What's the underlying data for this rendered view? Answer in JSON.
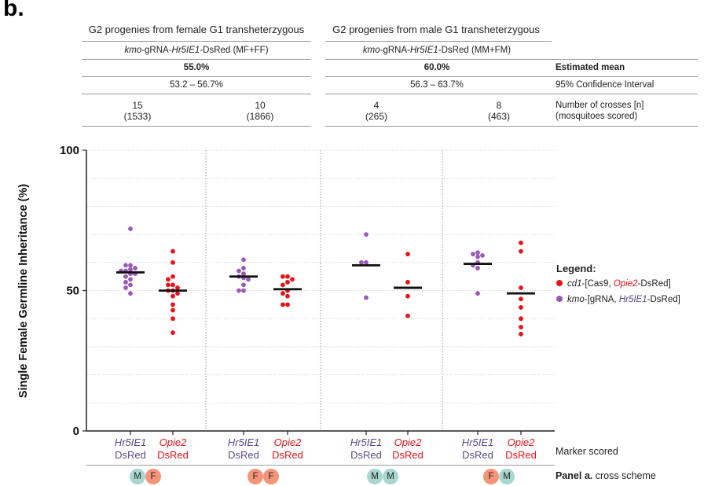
{
  "panel_letter": "b.",
  "header": {
    "group_female": "G2 progenies from female G1 transheterzygous",
    "group_male": "G2 progenies from male G1 transheterzygous",
    "line_female_pre": "kmo",
    "line_female_mid": "-gRNA-",
    "line_female_gene": "Hr5IE1",
    "line_female_post": "-DsRed (MF+FF)",
    "line_male_pre": "kmo",
    "line_male_mid": "-gRNA-",
    "line_male_gene": "Hr5IE1",
    "line_male_post": "-DsRed (MM+FM)",
    "mean_female": "55.0%",
    "mean_male": "60.0%",
    "ci_female": "53.2 – 56.7%",
    "ci_male": "56.3 – 63.7%",
    "right_labels": {
      "mean": "Estimated mean",
      "ci": "95% Confidence Interval",
      "n_line1": "Number of crosses [n]",
      "n_line2": "(mosquitoes scored)"
    },
    "counts": [
      {
        "n": "15",
        "scored": "(1533)"
      },
      {
        "n": "10",
        "scored": "(1866)"
      },
      {
        "n": "4",
        "scored": "(265)"
      },
      {
        "n": "8",
        "scored": "(463)"
      }
    ]
  },
  "legend": {
    "title": "Legend:",
    "items": [
      {
        "prefix": "cd1",
        "mid": "-[Cas9, ",
        "gene": "Opie2",
        "suffix": "-DsRed]",
        "color": "#e8121a"
      },
      {
        "prefix": "kmo",
        "mid": "-[gRNA, ",
        "gene": "Hr5IE1",
        "suffix": "-DsRed]",
        "color": "#9b59b6"
      }
    ]
  },
  "bottom": {
    "marker_scored": "Marker scored",
    "panel_ref_bold": "Panel a.",
    "panel_ref_rest": " cross scheme",
    "groups": [
      {
        "circles": [
          "M",
          "F"
        ]
      },
      {
        "circles": [
          "F",
          "F"
        ]
      },
      {
        "circles": [
          "M",
          "M"
        ]
      },
      {
        "circles": [
          "F",
          "M"
        ]
      }
    ],
    "circle_colors": {
      "M": "#a7d7cf",
      "F": "#f4957a"
    }
  },
  "chart_data": {
    "type": "scatter",
    "ylabel": "Single Female Germline Inheritance (%)",
    "ylim": [
      0,
      100
    ],
    "yticks": [
      "0",
      "50",
      "100"
    ],
    "grid": "horizontal dotted",
    "colors": {
      "Hr5IE1": "#9b59b6",
      "Opie2": "#e8121a"
    },
    "categories": [
      {
        "line1": "Hr5IE1",
        "line2": "DsRed",
        "marker": "Hr5IE1",
        "group": 0,
        "mean": 56.5,
        "values": [
          72,
          59,
          59,
          58,
          57.5,
          57,
          57,
          56,
          56,
          55,
          54,
          53,
          52,
          51,
          49
        ]
      },
      {
        "line1": "Opie2",
        "line2": "DsRed",
        "marker": "Opie2",
        "group": 0,
        "mean": 50,
        "values": [
          64,
          60,
          55,
          54,
          52,
          52,
          51,
          50,
          50,
          49,
          48,
          45,
          43,
          40,
          35
        ]
      },
      {
        "line1": "Hr5IE1",
        "line2": "DsRed",
        "marker": "Hr5IE1",
        "group": 1,
        "mean": 55,
        "values": [
          61,
          58,
          57,
          56,
          55,
          54.5,
          54,
          52,
          50,
          50
        ]
      },
      {
        "line1": "Opie2",
        "line2": "DsRed",
        "marker": "Opie2",
        "group": 1,
        "mean": 50.5,
        "values": [
          55,
          55,
          54,
          53,
          52,
          50,
          49,
          48,
          45,
          45
        ]
      },
      {
        "line1": "Hr5IE1",
        "line2": "DsRed",
        "marker": "Hr5IE1",
        "group": 2,
        "mean": 59,
        "values": [
          70,
          60,
          60,
          47.5
        ]
      },
      {
        "line1": "Opie2",
        "line2": "DsRed",
        "marker": "Opie2",
        "group": 2,
        "mean": 51,
        "values": [
          63,
          53,
          48,
          41
        ]
      },
      {
        "line1": "Hr5IE1",
        "line2": "DsRed",
        "marker": "Hr5IE1",
        "group": 3,
        "mean": 59.5,
        "values": [
          63.5,
          63,
          62.5,
          62,
          60,
          59,
          58,
          49
        ]
      },
      {
        "line1": "Opie2",
        "line2": "DsRed",
        "marker": "Opie2",
        "group": 3,
        "mean": 49,
        "values": [
          67,
          64,
          51,
          47,
          44,
          40,
          37,
          34.5
        ]
      }
    ]
  }
}
